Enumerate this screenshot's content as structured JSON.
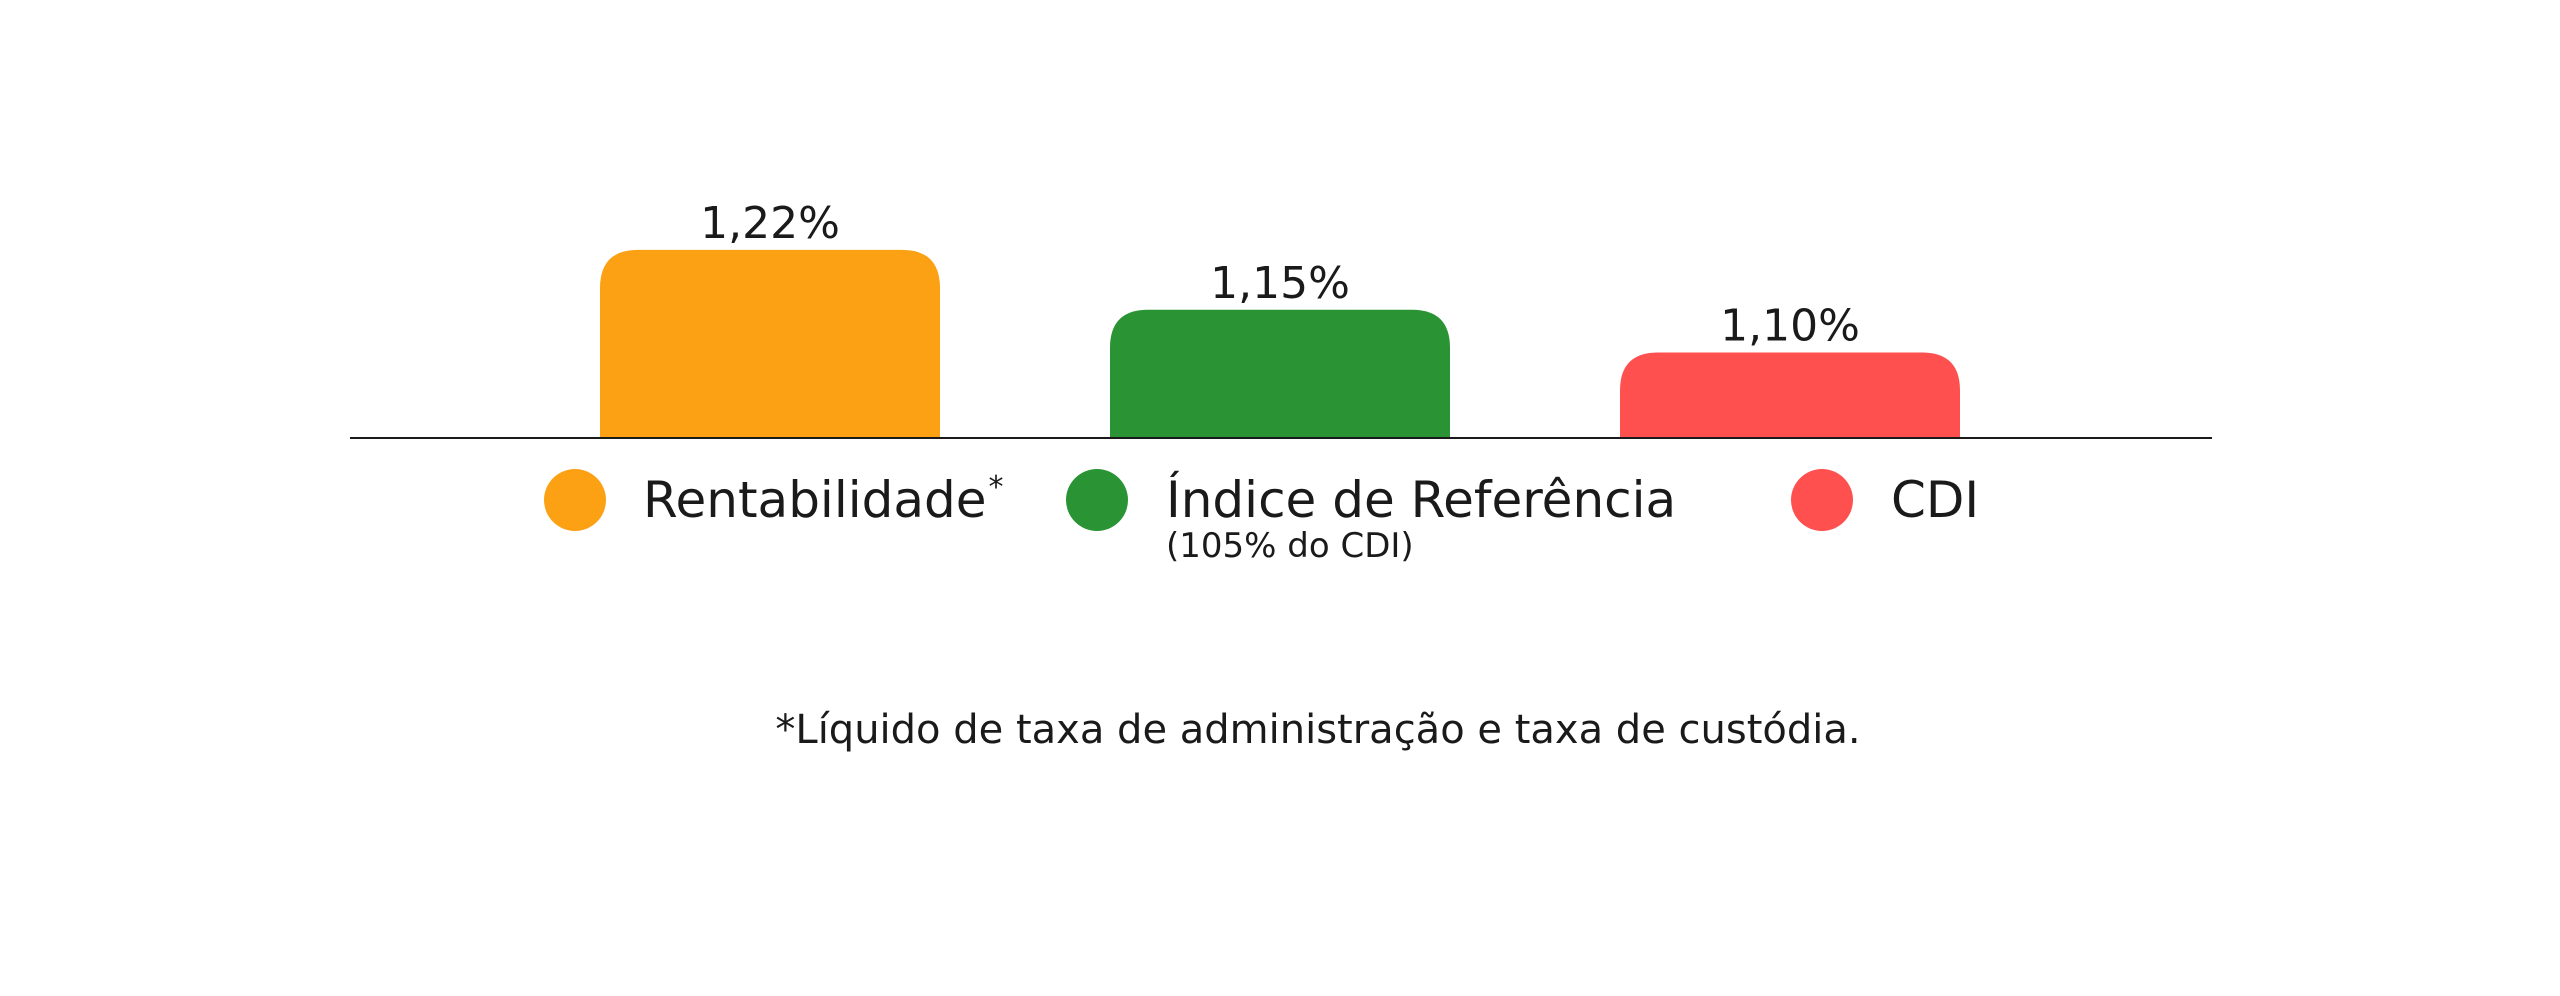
{
  "chart_data": {
    "type": "bar",
    "categories": [
      "Rentabilidade",
      "Índice de Referência",
      "CDI"
    ],
    "values": [
      1.22,
      1.15,
      1.1
    ],
    "value_labels": [
      "1,22%",
      "1,15%",
      "1,10%"
    ],
    "colors": [
      "#FCA014",
      "#2A9434",
      "#FF5050"
    ],
    "baseline": 1.0,
    "grid": false,
    "legend": {
      "placement": "bottom",
      "items": [
        {
          "label": "Rentabilidade",
          "marker": "*",
          "sublabel": "",
          "color": "#FCA014"
        },
        {
          "label": "Índice de Referência",
          "marker": "",
          "sublabel": "(105% do CDI)",
          "color": "#2A9434"
        },
        {
          "label": "CDI",
          "marker": "",
          "sublabel": "",
          "color": "#FF5050"
        }
      ]
    },
    "footnote": "*Líquido de taxa de administração e taxa de custódia."
  }
}
